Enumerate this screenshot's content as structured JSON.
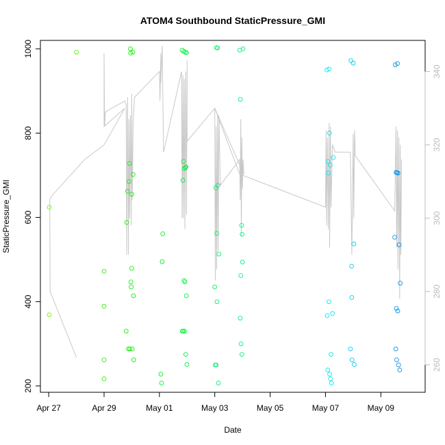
{
  "chart_data": {
    "type": "scatter",
    "title": "ATOM4 Southbound StaticPressure_GMI",
    "xlabel": "Date",
    "ylabel": "StaticPressure_GMI",
    "xlim": [
      -0.3,
      13.6
    ],
    "ylim": [
      185,
      1020
    ],
    "y_ticks": [
      200,
      400,
      600,
      800,
      1000
    ],
    "x_ticks": [
      {
        "day": 0,
        "label": "Apr 27"
      },
      {
        "day": 2,
        "label": "Apr 29"
      },
      {
        "day": 4,
        "label": "May 01"
      },
      {
        "day": 6,
        "label": "May 03"
      },
      {
        "day": 8,
        "label": "May 05"
      },
      {
        "day": 10,
        "label": "May 07"
      },
      {
        "day": 12,
        "label": "May 09"
      }
    ],
    "right_axis": {
      "ylim": [
        252.5,
        348.5
      ],
      "ticks": [
        260,
        280,
        300,
        320,
        340
      ],
      "color": "#bbbbbb"
    },
    "grid": false,
    "x_unit": "days since Apr 27",
    "series": [
      {
        "marker": "open-circle",
        "color_scale": "green to blue by date",
        "points": [
          [
            0.02,
            624
          ],
          [
            0.02,
            369
          ],
          [
            1.0,
            992
          ],
          [
            2.0,
            472
          ],
          [
            2.0,
            389
          ],
          [
            2.0,
            262
          ],
          [
            2.0,
            217
          ],
          [
            2.8,
            330
          ],
          [
            2.82,
            588
          ],
          [
            2.85,
            662
          ],
          [
            2.88,
            288
          ],
          [
            2.9,
            685
          ],
          [
            2.92,
            728
          ],
          [
            2.93,
            288
          ],
          [
            2.95,
            1000
          ],
          [
            2.96,
            990
          ],
          [
            2.97,
            447
          ],
          [
            2.98,
            435
          ],
          [
            3.0,
            479
          ],
          [
            3.0,
            655
          ],
          [
            3.02,
            288
          ],
          [
            3.04,
            992
          ],
          [
            3.05,
            702
          ],
          [
            3.06,
            414
          ],
          [
            3.07,
            262
          ],
          [
            4.05,
            228
          ],
          [
            4.08,
            207
          ],
          [
            4.1,
            495
          ],
          [
            4.12,
            561
          ],
          [
            4.82,
            997
          ],
          [
            4.83,
            330
          ],
          [
            4.85,
            688
          ],
          [
            4.86,
            330
          ],
          [
            4.87,
            733
          ],
          [
            4.88,
            994
          ],
          [
            4.89,
            450
          ],
          [
            4.9,
            716
          ],
          [
            4.91,
            330
          ],
          [
            4.92,
            447
          ],
          [
            4.93,
            992
          ],
          [
            4.94,
            718
          ],
          [
            4.95,
            275
          ],
          [
            4.96,
            720
          ],
          [
            4.97,
            414
          ],
          [
            4.98,
            991
          ],
          [
            4.99,
            251
          ],
          [
            6.0,
            435
          ],
          [
            6.02,
            250
          ],
          [
            6.04,
            670
          ],
          [
            6.05,
            250
          ],
          [
            6.06,
            1003
          ],
          [
            6.07,
            562
          ],
          [
            6.08,
            400
          ],
          [
            6.1,
            1002
          ],
          [
            6.11,
            676
          ],
          [
            6.13,
            207
          ],
          [
            6.15,
            513
          ],
          [
            6.9,
            997
          ],
          [
            6.92,
            361
          ],
          [
            6.93,
            880
          ],
          [
            6.94,
            462
          ],
          [
            6.95,
            300
          ],
          [
            6.97,
            581
          ],
          [
            6.98,
            275
          ],
          [
            6.99,
            560
          ],
          [
            7.0,
            494
          ],
          [
            7.02,
            1000
          ],
          [
            10.05,
            950
          ],
          [
            10.06,
            367
          ],
          [
            10.08,
            238
          ],
          [
            10.09,
            733
          ],
          [
            10.1,
            705
          ],
          [
            10.12,
            400
          ],
          [
            10.13,
            952
          ],
          [
            10.14,
            800
          ],
          [
            10.15,
            228
          ],
          [
            10.17,
            724
          ],
          [
            10.18,
            217
          ],
          [
            10.2,
            275
          ],
          [
            10.22,
            207
          ],
          [
            10.25,
            372
          ],
          [
            10.28,
            742
          ],
          [
            10.9,
            288
          ],
          [
            10.92,
            972
          ],
          [
            10.94,
            484
          ],
          [
            10.95,
            410
          ],
          [
            10.96,
            262
          ],
          [
            11.0,
            966
          ],
          [
            11.02,
            537
          ],
          [
            11.04,
            251
          ],
          [
            12.5,
            553
          ],
          [
            12.52,
            962
          ],
          [
            12.54,
            288
          ],
          [
            12.55,
            707
          ],
          [
            12.56,
            384
          ],
          [
            12.57,
            262
          ],
          [
            12.58,
            706
          ],
          [
            12.6,
            965
          ],
          [
            12.61,
            378
          ],
          [
            12.62,
            705
          ],
          [
            12.64,
            250
          ],
          [
            12.66,
            535
          ],
          [
            12.68,
            238
          ],
          [
            12.7,
            444
          ]
        ]
      },
      {
        "name": "",
        "type": "line",
        "axis": "right",
        "color": "#c8c8c8",
        "points": [
          [
            1.0,
            262
          ],
          [
            0.05,
            280
          ],
          [
            0.04,
            305
          ],
          [
            0.1,
            306
          ],
          [
            1.3,
            316
          ],
          [
            2.0,
            320
          ],
          [
            2.75,
            330
          ],
          [
            2.0,
            325
          ],
          [
            2.0,
            345
          ],
          [
            2.02,
            325
          ],
          [
            2.05,
            329
          ],
          [
            2.75,
            332
          ],
          [
            2.8,
            331
          ],
          [
            2.82,
            290
          ],
          [
            2.85,
            333
          ],
          [
            2.88,
            290
          ],
          [
            2.9,
            327
          ],
          [
            2.92,
            300
          ],
          [
            2.95,
            328
          ],
          [
            2.98,
            298
          ],
          [
            3.0,
            334
          ],
          [
            3.02,
            305
          ],
          [
            3.05,
            326
          ],
          [
            3.1,
            333
          ],
          [
            4.0,
            340
          ],
          [
            4.02,
            332
          ],
          [
            4.05,
            345
          ],
          [
            4.05,
            337
          ],
          [
            4.1,
            347
          ],
          [
            4.15,
            318
          ],
          [
            4.8,
            340
          ],
          [
            4.82,
            300
          ],
          [
            4.85,
            339
          ],
          [
            4.87,
            300
          ],
          [
            4.9,
            338
          ],
          [
            4.92,
            297
          ],
          [
            4.95,
            340
          ],
          [
            4.98,
            301
          ],
          [
            5.0,
            343
          ],
          [
            5.0,
            321
          ],
          [
            6.0,
            330
          ],
          [
            6.02,
            283
          ],
          [
            6.05,
            325
          ],
          [
            6.07,
            286
          ],
          [
            6.1,
            328
          ],
          [
            6.12,
            291
          ],
          [
            6.15,
            328
          ],
          [
            6.2,
            309
          ],
          [
            6.9,
            316
          ],
          [
            6.92,
            305
          ],
          [
            6.94,
            327
          ],
          [
            6.96,
            295
          ],
          [
            6.98,
            322
          ],
          [
            7.0,
            308
          ],
          [
            7.02,
            316
          ],
          [
            7.05,
            312
          ],
          [
            6.0,
            330
          ],
          [
            6.9,
            312
          ],
          [
            10.0,
            303
          ],
          [
            10.02,
            324
          ],
          [
            10.04,
            298
          ],
          [
            10.07,
            322
          ],
          [
            10.1,
            297
          ],
          [
            10.13,
            326
          ],
          [
            10.15,
            292
          ],
          [
            10.18,
            325
          ],
          [
            10.2,
            303
          ],
          [
            10.25,
            320
          ],
          [
            10.35,
            318
          ],
          [
            10.9,
            318
          ],
          [
            10.95,
            290
          ],
          [
            11.0,
            323
          ],
          [
            11.02,
            300
          ],
          [
            11.05,
            324
          ],
          [
            11.08,
            317
          ],
          [
            12.5,
            302
          ],
          [
            12.55,
            325
          ],
          [
            12.57,
            292
          ],
          [
            12.6,
            324
          ],
          [
            12.62,
            286
          ],
          [
            12.65,
            322
          ],
          [
            12.68,
            278
          ],
          [
            12.7,
            320
          ],
          [
            12.72,
            290
          ],
          [
            12.75,
            316
          ]
        ]
      }
    ]
  }
}
